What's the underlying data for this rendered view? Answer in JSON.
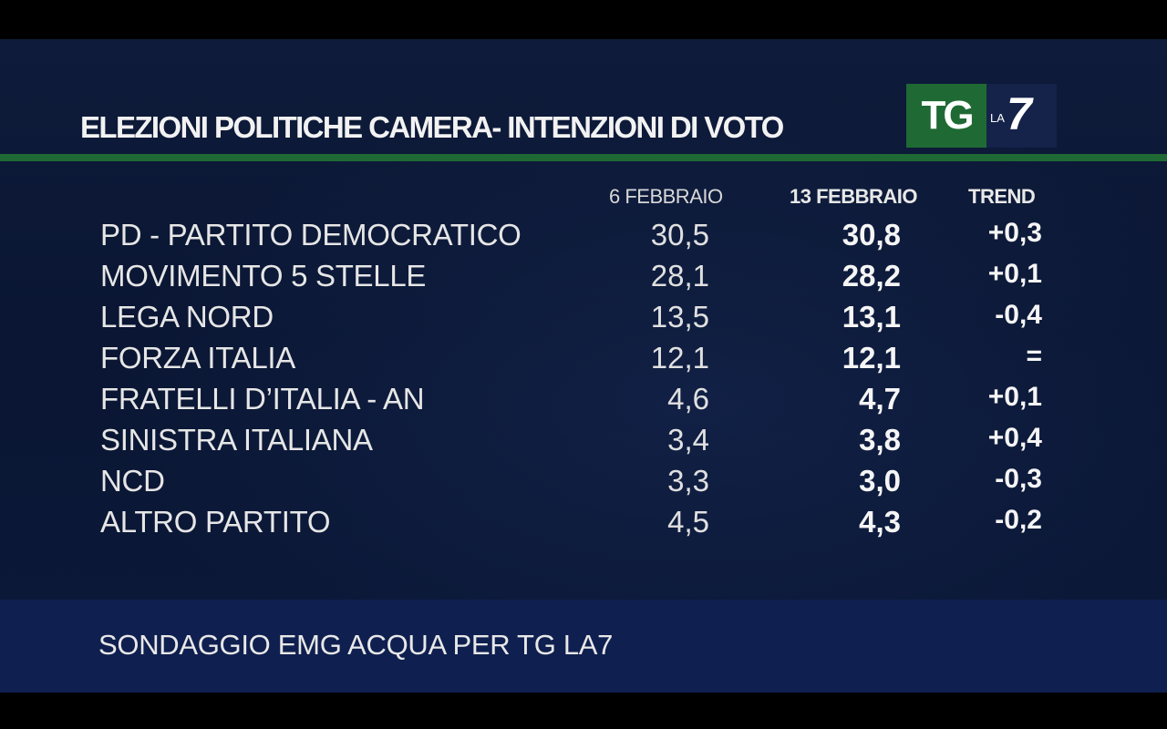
{
  "title": "ELEZIONI POLITICHE  CAMERA- INTENZIONI DI VOTO",
  "logo": {
    "tg": "TG",
    "la": "LA",
    "seven": "7"
  },
  "columns": {
    "prev": "6 FEBBRAIO",
    "current": "13 FEBBRAIO",
    "trend": "TREND"
  },
  "chart_data": {
    "type": "table",
    "title": "ELEZIONI POLITICHE  CAMERA- INTENZIONI DI VOTO",
    "columns": [
      "6 FEBBRAIO",
      "13 FEBBRAIO",
      "TREND"
    ],
    "rows": [
      {
        "party": "PD - PARTITO DEMOCRATICO",
        "prev": "30,5",
        "current": "30,8",
        "trend": "+0,3"
      },
      {
        "party": "MOVIMENTO 5 STELLE",
        "prev": "28,1",
        "current": "28,2",
        "trend": "+0,1"
      },
      {
        "party": "LEGA NORD",
        "prev": "13,5",
        "current": "13,1",
        "trend": "-0,4"
      },
      {
        "party": "FORZA ITALIA",
        "prev": "12,1",
        "current": "12,1",
        "trend": "="
      },
      {
        "party": "FRATELLI D’ITALIA - AN",
        "prev": "4,6",
        "current": "4,7",
        "trend": "+0,1"
      },
      {
        "party": "SINISTRA ITALIANA",
        "prev": "3,4",
        "current": "3,8",
        "trend": "+0,4"
      },
      {
        "party": "NCD",
        "prev": "3,3",
        "current": "3,0",
        "trend": "-0,3"
      },
      {
        "party": "ALTRO PARTITO",
        "prev": "4,5",
        "current": "4,3",
        "trend": "-0,2"
      }
    ]
  },
  "footer": "SONDAGGIO EMG ACQUA PER TG LA7",
  "colors": {
    "background": "#0b1838",
    "accent_green": "#1f6a34",
    "footer_band": "#0f1f4f"
  }
}
